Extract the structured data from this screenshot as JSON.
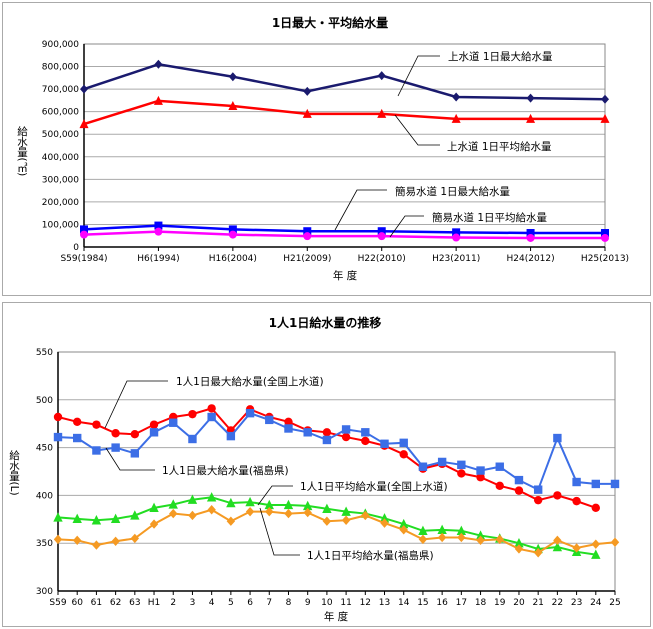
{
  "chart_data": [
    {
      "type": "line",
      "title": "1日最大・平均給水量",
      "xlabel": "年 度",
      "ylabel": "給水量(㎥)",
      "ylim": [
        0,
        900000
      ],
      "yticks": [
        "0",
        "100,000",
        "200,000",
        "300,000",
        "400,000",
        "500,000",
        "600,000",
        "700,000",
        "800,000",
        "900,000"
      ],
      "grid": true,
      "categories": [
        "S59(1984)",
        "H6(1994)",
        "H16(2004)",
        "H21(2009)",
        "H22(2010)",
        "H23(2011)",
        "H24(2012)",
        "H25(2013)"
      ],
      "series": [
        {
          "name": "上水道 1日最大給水量",
          "color": "#1a1a6e",
          "marker": "diamond",
          "values": [
            700000,
            810000,
            755000,
            690000,
            760000,
            665000,
            660000,
            655000
          ]
        },
        {
          "name": "上水道 1日平均給水量",
          "color": "#ff0000",
          "marker": "triangle",
          "values": [
            545000,
            648000,
            625000,
            590000,
            590000,
            568000,
            568000,
            568000
          ]
        },
        {
          "name": "簡易水道 1日最大給水量",
          "color": "#0000ff",
          "marker": "square",
          "values": [
            78000,
            95000,
            78000,
            70000,
            70000,
            65000,
            62000,
            62000
          ]
        },
        {
          "name": "簡易水道 1日平均給水量",
          "color": "#ff00ff",
          "marker": "circle",
          "values": [
            55000,
            68000,
            55000,
            48000,
            48000,
            42000,
            40000,
            40000
          ]
        }
      ]
    },
    {
      "type": "line",
      "title": "1人1日給水量の推移",
      "xlabel": "年 度",
      "ylabel": "給水量(L)",
      "ylim": [
        300,
        550
      ],
      "yticks": [
        "300",
        "350",
        "400",
        "450",
        "500",
        "550"
      ],
      "grid": true,
      "categories": [
        "S59",
        "60",
        "61",
        "62",
        "63",
        "H1",
        "2",
        "3",
        "4",
        "5",
        "6",
        "7",
        "8",
        "9",
        "10",
        "11",
        "12",
        "13",
        "14",
        "15",
        "16",
        "17",
        "18",
        "19",
        "20",
        "21",
        "22",
        "23",
        "24",
        "25"
      ],
      "series": [
        {
          "name": "1人1日最大給水量(全国上水道)",
          "color": "#ff0000",
          "marker": "circle",
          "values": [
            482,
            477,
            474,
            465,
            464,
            474,
            482,
            485,
            491,
            468,
            490,
            482,
            477,
            468,
            466,
            461,
            457,
            452,
            443,
            428,
            433,
            423,
            419,
            410,
            405,
            395,
            400,
            394,
            387,
            null
          ]
        },
        {
          "name": "1人1日最大給水量(福島県)",
          "color": "#3c6ee6",
          "marker": "square",
          "values": [
            461,
            460,
            447,
            450,
            444,
            466,
            476,
            459,
            482,
            462,
            486,
            479,
            470,
            466,
            458,
            469,
            466,
            454,
            455,
            430,
            435,
            432,
            426,
            430,
            416,
            406,
            460,
            414,
            412,
            412
          ]
        },
        {
          "name": "1人1日平均給水量(全国上水道)",
          "color": "#22dd22",
          "marker": "triangle",
          "values": [
            377,
            375.5,
            374,
            375.5,
            379,
            387,
            390.5,
            395.5,
            398,
            392,
            393,
            390,
            390,
            389,
            386,
            383,
            381,
            376,
            370,
            363,
            364,
            363,
            358,
            355,
            350,
            344,
            346,
            341,
            338,
            null
          ]
        },
        {
          "name": "1人1日平均給水量(福島県)",
          "color": "#f59a23",
          "marker": "diamond",
          "values": [
            354,
            353,
            348,
            352,
            355,
            370,
            381,
            379,
            385,
            373,
            383,
            383,
            381,
            382,
            373,
            374,
            379,
            371,
            364,
            354,
            356,
            356,
            353,
            354,
            344,
            340,
            353,
            345,
            349,
            351
          ]
        }
      ]
    }
  ]
}
